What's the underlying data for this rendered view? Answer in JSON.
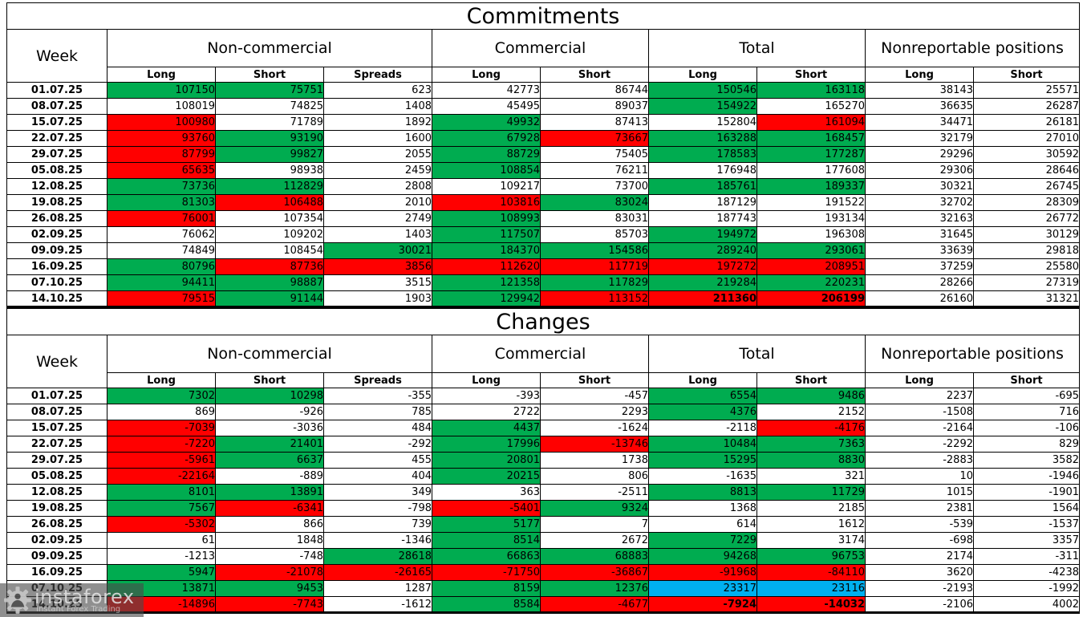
{
  "colors": {
    "g": "#00AC50",
    "r": "#FF0000",
    "b": "#00B0F0"
  },
  "header": {
    "week_label": "Week",
    "groups": [
      {
        "label": "Non-commercial",
        "columns": [
          "Long",
          "Short",
          "Spreads"
        ]
      },
      {
        "label": "Commercial",
        "columns": [
          "Long",
          "Short"
        ]
      },
      {
        "label": "Total",
        "columns": [
          "Long",
          "Short"
        ]
      },
      {
        "label": "Nonreportable positions",
        "columns": [
          "Long",
          "Short"
        ]
      }
    ]
  },
  "chart_data": [
    {
      "type": "table",
      "title": "Commitments",
      "rows": [
        {
          "week": "01.07.25",
          "values": [
            "107150",
            "75751",
            "623",
            "42773",
            "86744",
            "150546",
            "163118",
            "38143",
            "25571"
          ],
          "colors": [
            "g",
            "g",
            "",
            "",
            "",
            "g",
            "g",
            "",
            ""
          ]
        },
        {
          "week": "08.07.25",
          "values": [
            "108019",
            "74825",
            "1408",
            "45495",
            "89037",
            "154922",
            "165270",
            "36635",
            "26287"
          ],
          "colors": [
            "",
            "",
            "",
            "",
            "",
            "g",
            "",
            "",
            ""
          ]
        },
        {
          "week": "15.07.25",
          "values": [
            "100980",
            "71789",
            "1892",
            "49932",
            "87413",
            "152804",
            "161094",
            "34471",
            "26181"
          ],
          "colors": [
            "r",
            "",
            "",
            "g",
            "",
            "",
            "r",
            "",
            ""
          ]
        },
        {
          "week": "22.07.25",
          "values": [
            "93760",
            "93190",
            "1600",
            "67928",
            "73667",
            "163288",
            "168457",
            "32179",
            "27010"
          ],
          "colors": [
            "r",
            "g",
            "",
            "g",
            "r",
            "g",
            "g",
            "",
            ""
          ]
        },
        {
          "week": "29.07.25",
          "values": [
            "87799",
            "99827",
            "2055",
            "88729",
            "75405",
            "178583",
            "177287",
            "29296",
            "30592"
          ],
          "colors": [
            "r",
            "g",
            "",
            "g",
            "",
            "g",
            "g",
            "",
            ""
          ]
        },
        {
          "week": "05.08.25",
          "values": [
            "65635",
            "98938",
            "2459",
            "108854",
            "76211",
            "176948",
            "177608",
            "29306",
            "28646"
          ],
          "colors": [
            "r",
            "",
            "",
            "g",
            "",
            "",
            "",
            "",
            ""
          ]
        },
        {
          "week": "12.08.25",
          "values": [
            "73736",
            "112829",
            "2808",
            "109217",
            "73700",
            "185761",
            "189337",
            "30321",
            "26745"
          ],
          "colors": [
            "g",
            "g",
            "",
            "",
            "",
            "g",
            "g",
            "",
            ""
          ]
        },
        {
          "week": "19.08.25",
          "values": [
            "81303",
            "106488",
            "2010",
            "103816",
            "83024",
            "187129",
            "191522",
            "32702",
            "28309"
          ],
          "colors": [
            "g",
            "r",
            "",
            "r",
            "g",
            "",
            "",
            "",
            ""
          ]
        },
        {
          "week": "26.08.25",
          "values": [
            "76001",
            "107354",
            "2749",
            "108993",
            "83031",
            "187743",
            "193134",
            "32163",
            "26772"
          ],
          "colors": [
            "r",
            "",
            "",
            "g",
            "",
            "",
            "",
            "",
            ""
          ]
        },
        {
          "week": "02.09.25",
          "values": [
            "76062",
            "109202",
            "1403",
            "117507",
            "85703",
            "194972",
            "196308",
            "31645",
            "30129"
          ],
          "colors": [
            "",
            "",
            "",
            "g",
            "",
            "g",
            "",
            "",
            ""
          ]
        },
        {
          "week": "09.09.25",
          "values": [
            "74849",
            "108454",
            "30021",
            "184370",
            "154586",
            "289240",
            "293061",
            "33639",
            "29818"
          ],
          "colors": [
            "",
            "",
            "g",
            "g",
            "g",
            "g",
            "g",
            "",
            ""
          ]
        },
        {
          "week": "16.09.25",
          "values": [
            "80796",
            "87736",
            "3856",
            "112620",
            "117719",
            "197272",
            "208951",
            "37259",
            "25580"
          ],
          "colors": [
            "g",
            "r",
            "r",
            "r",
            "r",
            "r",
            "r",
            "",
            ""
          ]
        },
        {
          "week": "07.10.25",
          "values": [
            "94411",
            "98887",
            "3515",
            "121358",
            "117829",
            "219284",
            "220231",
            "28266",
            "27319"
          ],
          "colors": [
            "g",
            "g",
            "",
            "g",
            "g",
            "g",
            "g",
            "",
            ""
          ]
        },
        {
          "week": "14.10.25",
          "values": [
            "79515",
            "91144",
            "1903",
            "129942",
            "113152",
            "211360",
            "206199",
            "26160",
            "31321"
          ],
          "colors": [
            "r",
            "g",
            "",
            "g",
            "r",
            "r",
            "r",
            "",
            ""
          ],
          "bold": [
            5,
            6
          ]
        }
      ]
    },
    {
      "type": "table",
      "title": "Changes",
      "rows": [
        {
          "week": "01.07.25",
          "values": [
            "7302",
            "10298",
            "-355",
            "-393",
            "-457",
            "6554",
            "9486",
            "2237",
            "-695"
          ],
          "colors": [
            "g",
            "g",
            "",
            "",
            "",
            "g",
            "g",
            "",
            ""
          ]
        },
        {
          "week": "08.07.25",
          "values": [
            "869",
            "-926",
            "785",
            "2722",
            "2293",
            "4376",
            "2152",
            "-1508",
            "716"
          ],
          "colors": [
            "",
            "",
            "",
            "",
            "",
            "g",
            "",
            "",
            ""
          ]
        },
        {
          "week": "15.07.25",
          "values": [
            "-7039",
            "-3036",
            "484",
            "4437",
            "-1624",
            "-2118",
            "-4176",
            "-2164",
            "-106"
          ],
          "colors": [
            "r",
            "",
            "",
            "g",
            "",
            "",
            "r",
            "",
            ""
          ]
        },
        {
          "week": "22.07.25",
          "values": [
            "-7220",
            "21401",
            "-292",
            "17996",
            "-13746",
            "10484",
            "7363",
            "-2292",
            "829"
          ],
          "colors": [
            "r",
            "g",
            "",
            "g",
            "r",
            "g",
            "g",
            "",
            ""
          ]
        },
        {
          "week": "29.07.25",
          "values": [
            "-5961",
            "6637",
            "455",
            "20801",
            "1738",
            "15295",
            "8830",
            "-2883",
            "3582"
          ],
          "colors": [
            "r",
            "g",
            "",
            "g",
            "",
            "g",
            "g",
            "",
            ""
          ]
        },
        {
          "week": "05.08.25",
          "values": [
            "-22164",
            "-889",
            "404",
            "20215",
            "806",
            "-1635",
            "321",
            "10",
            "-1946"
          ],
          "colors": [
            "r",
            "",
            "",
            "g",
            "",
            "",
            "",
            "",
            ""
          ]
        },
        {
          "week": "12.08.25",
          "values": [
            "8101",
            "13891",
            "349",
            "363",
            "-2511",
            "8813",
            "11729",
            "1015",
            "-1901"
          ],
          "colors": [
            "g",
            "g",
            "",
            "",
            "",
            "g",
            "g",
            "",
            ""
          ]
        },
        {
          "week": "19.08.25",
          "values": [
            "7567",
            "-6341",
            "-798",
            "-5401",
            "9324",
            "1368",
            "2185",
            "2381",
            "1564"
          ],
          "colors": [
            "g",
            "r",
            "",
            "r",
            "g",
            "",
            "",
            "",
            ""
          ]
        },
        {
          "week": "26.08.25",
          "values": [
            "-5302",
            "866",
            "739",
            "5177",
            "7",
            "614",
            "1612",
            "-539",
            "-1537"
          ],
          "colors": [
            "r",
            "",
            "",
            "g",
            "",
            "",
            "",
            "",
            ""
          ]
        },
        {
          "week": "02.09.25",
          "values": [
            "61",
            "1848",
            "-1346",
            "8514",
            "2672",
            "7229",
            "3174",
            "-698",
            "3357"
          ],
          "colors": [
            "",
            "",
            "",
            "g",
            "",
            "g",
            "",
            "",
            ""
          ]
        },
        {
          "week": "09.09.25",
          "values": [
            "-1213",
            "-748",
            "28618",
            "66863",
            "68883",
            "94268",
            "96753",
            "2174",
            "-311"
          ],
          "colors": [
            "",
            "",
            "g",
            "g",
            "g",
            "g",
            "g",
            "",
            ""
          ]
        },
        {
          "week": "16.09.25",
          "values": [
            "5947",
            "-21078",
            "-26165",
            "-71750",
            "-36867",
            "-91968",
            "-84110",
            "3620",
            "-4238"
          ],
          "colors": [
            "g",
            "r",
            "r",
            "r",
            "r",
            "r",
            "r",
            "",
            ""
          ]
        },
        {
          "week": "07.10.25",
          "values": [
            "13871",
            "9453",
            "1287",
            "8159",
            "12376",
            "23317",
            "23116",
            "-2193",
            "-1992"
          ],
          "colors": [
            "g",
            "g",
            "",
            "g",
            "g",
            "b",
            "b",
            "",
            ""
          ]
        },
        {
          "week": "14.10.25",
          "values": [
            "-14896",
            "-7743",
            "-1612",
            "8584",
            "-4677",
            "-7924",
            "-14032",
            "-2106",
            "4002"
          ],
          "colors": [
            "r",
            "r",
            "",
            "g",
            "r",
            "r",
            "r",
            "",
            ""
          ],
          "bold": [
            5,
            6
          ]
        }
      ]
    }
  ],
  "watermark": {
    "brand": "instaforex",
    "tagline": "Instant Forex Trading"
  }
}
